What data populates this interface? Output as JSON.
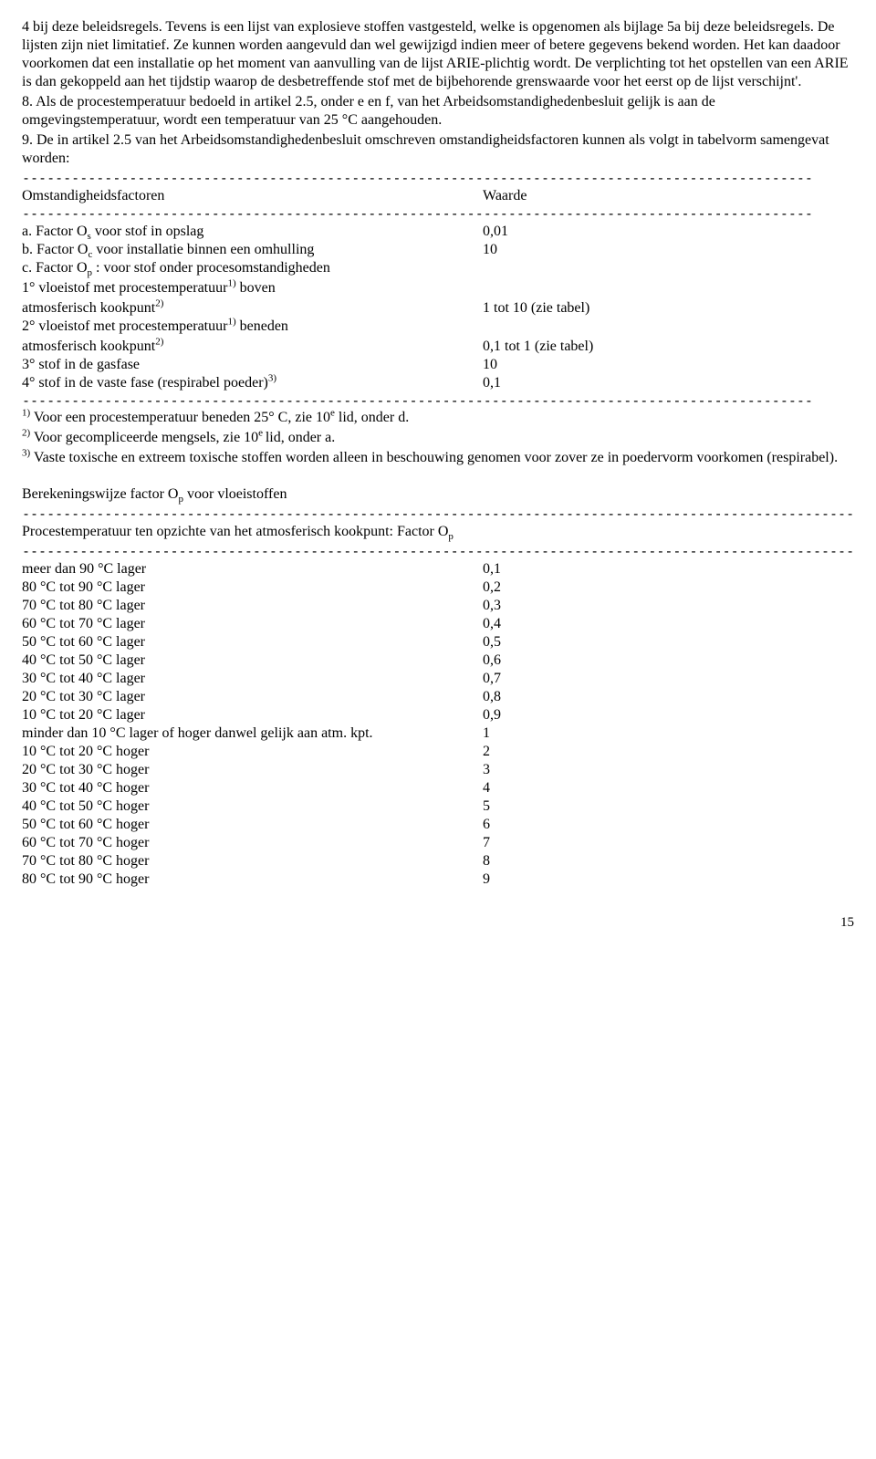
{
  "p1": "4 bij deze beleidsregels. Tevens is een lijst van explosieve stoffen vastgesteld, welke is opgenomen als bijlage 5a bij deze beleidsregels. De lijsten zijn niet limitatief. Ze kunnen worden aangevuld dan wel gewijzigd indien meer of betere gegevens bekend worden. Het kan daadoor voorkomen dat een installatie op het moment van aanvulling van de lijst ARIE-plichtig wordt. De verplichting tot het opstellen van een ARIE is dan gekoppeld aan het tijdstip waarop de desbetreffende stof met de bijbehorende grenswaarde voor het eerst op de lijst verschijnt'.",
  "p2": "8. Als de procestemperatuur bedoeld in artikel 2.5, onder e en f, van het Arbeidsomstandighedenbesluit gelijk is aan de omgevingstemperatuur, wordt een temperatuur van 25 °C aangehouden.",
  "p3": "9. De in artikel 2.5 van het Arbeidsomstandighedenbesluit omschreven omstandigheidsfactoren kunnen als volgt in tabelvorm samengevat worden:",
  "dash_short": "------------------------------------------------------------------------------------------------",
  "dash_long": "-----------------------------------------------------------------------------------------------------------",
  "t1_header_l": "Omstandigheidsfactoren",
  "t1_header_r": "Waarde",
  "t1_a_pre": "a. Factor O",
  "t1_a_sub": "s",
  "t1_a_post": " voor stof in opslag",
  "t1_a_v": "0,01",
  "t1_b_pre": "b. Factor O",
  "t1_b_sub": "c",
  "t1_b_post": " voor installatie binnen een omhulling",
  "t1_b_v": "10",
  "t1_c_pre": "c. Factor O",
  "t1_c_sub": "p",
  "t1_c_post": " : voor stof onder procesomstandigheden",
  "t1_1a": "1° vloeistof met procestemperatuur",
  "t1_1a_sup": "1)",
  "t1_1a_post": " boven",
  "t1_1b": "atmosferisch kookpunt",
  "t1_1b_sup": "2)",
  "t1_1b_v": "1 tot 10 (zie tabel)",
  "t1_2a": "2° vloeistof met procestemperatuur",
  "t1_2a_sup": "1)",
  "t1_2a_post": " beneden",
  "t1_2b": "atmosferisch kookpunt",
  "t1_2b_sup": "2)",
  "t1_2b_v": "0,1 tot 1 (zie tabel)",
  "t1_3": "3° stof in de gasfase",
  "t1_3_v": "10",
  "t1_4": "4° stof in de vaste fase (respirabel poeder)",
  "t1_4_sup": "3)",
  "t1_4_v": "0,1",
  "fn1_sup": "1)",
  "fn1_pre": " Voor een procestemperatuur beneden 25° C, zie 10",
  "fn1_mid_sup": "e",
  "fn1_post": " lid, onder d.",
  "fn2_sup": "2)",
  "fn2_pre": " Voor gecompliceerde mengsels, zie 10",
  "fn2_mid_sup": "e ",
  "fn2_post": "lid, onder a.",
  "fn3_sup": "3)",
  "fn3": " Vaste toxische en extreem toxische stoffen worden alleen in beschouwing genomen voor zover ze in poedervorm voorkomen (respirabel).",
  "calc_title_pre": "Berekeningswijze factor O",
  "calc_title_sub": "p",
  "calc_title_post": " voor vloeistoffen",
  "t2_header_pre": "Procestemperatuur ten opzichte van het atmosferisch kookpunt: Factor O",
  "t2_header_sub": "p",
  "t2_rows": [
    {
      "l": "meer dan 90 °C lager",
      "v": "0,1"
    },
    {
      "l": "80 °C tot 90 °C lager",
      "v": "0,2"
    },
    {
      "l": "70 °C tot 80 °C lager",
      "v": "0,3"
    },
    {
      "l": "60 °C tot 70 °C lager",
      "v": "0,4"
    },
    {
      "l": "50 °C tot 60 °C lager",
      "v": "0,5"
    },
    {
      "l": "40 °C tot 50 °C lager",
      "v": "0,6"
    },
    {
      "l": "30 °C tot 40 °C lager",
      "v": "0,7"
    },
    {
      "l": "20 °C tot 30 °C lager",
      "v": "0,8"
    },
    {
      "l": "10 °C tot 20 °C lager",
      "v": "0,9"
    },
    {
      "l": "minder dan 10 °C lager of hoger danwel gelijk aan atm. kpt.",
      "v": "1"
    },
    {
      "l": "10 °C tot 20 °C hoger",
      "v": "2"
    },
    {
      "l": "20 °C tot 30 °C hoger",
      "v": "3"
    },
    {
      "l": "30 °C tot 40 °C hoger",
      "v": "4"
    },
    {
      "l": "40 °C tot 50 °C hoger",
      "v": "5"
    },
    {
      "l": "50 °C tot 60 °C hoger",
      "v": "6"
    },
    {
      "l": "60 °C tot 70 °C hoger",
      "v": "7"
    },
    {
      "l": "70 °C tot 80 °C hoger",
      "v": "8"
    },
    {
      "l": "80 °C tot 90 °C hoger",
      "v": "9"
    }
  ],
  "pagenum": "15"
}
